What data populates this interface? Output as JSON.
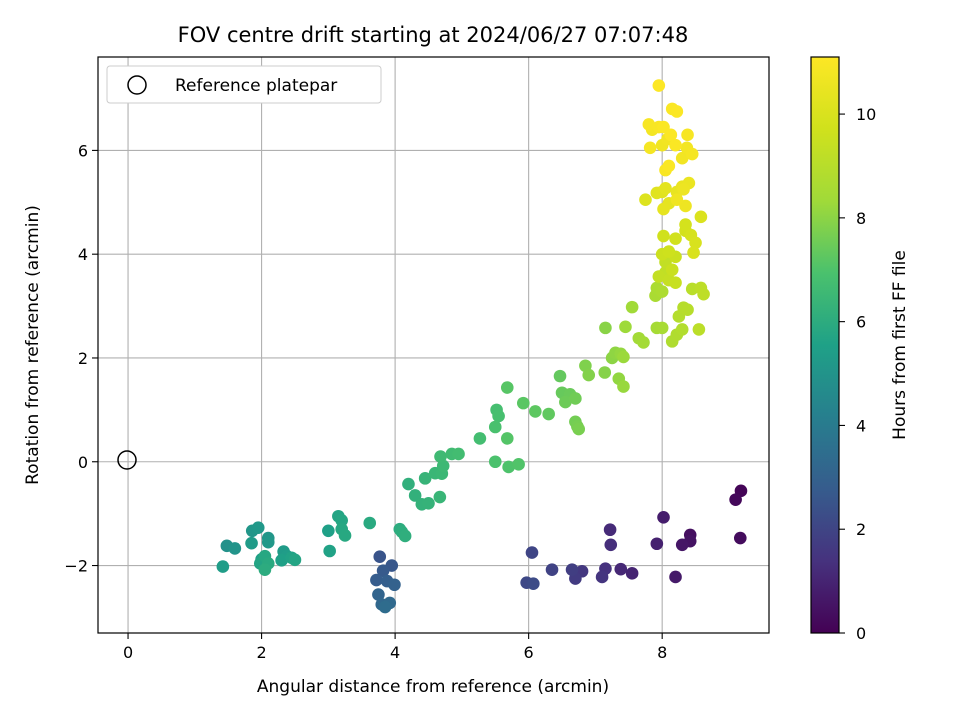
{
  "chart_data": {
    "type": "scatter",
    "title": "FOV centre drift starting at 2024/06/27 07:07:48",
    "xlabel": "Angular distance from reference (arcmin)",
    "ylabel": "Rotation from reference (arcmin)",
    "xlim": [
      -0.45,
      9.6
    ],
    "ylim": [
      -3.3,
      7.8
    ],
    "xticks": [
      0,
      2,
      4,
      6,
      8
    ],
    "yticks": [
      -2,
      0,
      2,
      4,
      6
    ],
    "grid": true,
    "legend": {
      "placement": "top-left",
      "entries": [
        "Reference platepar"
      ]
    },
    "reference_point": {
      "x": 0,
      "y": 0,
      "marker": "open circle"
    },
    "colorbar": {
      "label": "Hours from first FF file",
      "colormap": "viridis",
      "range": [
        0,
        11.1
      ],
      "ticks": [
        0,
        2,
        4,
        6,
        8,
        10
      ]
    },
    "points": [
      [
        9.18,
        -0.56,
        0.1
      ],
      [
        9.1,
        -0.73,
        0.2
      ],
      [
        9.17,
        -1.47,
        0.3
      ],
      [
        8.42,
        -1.41,
        0.4
      ],
      [
        8.42,
        -1.53,
        0.5
      ],
      [
        8.3,
        -1.6,
        0.6
      ],
      [
        8.2,
        -2.22,
        0.7
      ],
      [
        8.02,
        -1.07,
        0.8
      ],
      [
        7.92,
        -1.58,
        0.9
      ],
      [
        7.55,
        -2.15,
        1.0
      ],
      [
        7.38,
        -2.07,
        1.1
      ],
      [
        7.22,
        -1.31,
        1.2
      ],
      [
        7.23,
        -1.6,
        1.3
      ],
      [
        7.15,
        -2.06,
        1.4
      ],
      [
        7.1,
        -2.22,
        1.5
      ],
      [
        6.8,
        -2.11,
        1.6
      ],
      [
        6.7,
        -2.25,
        1.7
      ],
      [
        6.65,
        -2.08,
        1.8
      ],
      [
        6.35,
        -2.08,
        1.9
      ],
      [
        6.05,
        -1.75,
        2.0
      ],
      [
        5.97,
        -2.33,
        2.1
      ],
      [
        6.07,
        -2.35,
        2.2
      ],
      [
        3.77,
        -1.83,
        2.5
      ],
      [
        3.95,
        -2.0,
        2.6
      ],
      [
        3.82,
        -2.1,
        2.7
      ],
      [
        3.72,
        -2.28,
        2.8
      ],
      [
        3.88,
        -2.3,
        2.9
      ],
      [
        3.99,
        -2.37,
        3.0
      ],
      [
        3.75,
        -2.56,
        3.1
      ],
      [
        3.8,
        -2.75,
        3.2
      ],
      [
        3.92,
        -2.72,
        3.3
      ],
      [
        3.85,
        -2.8,
        3.4
      ],
      [
        1.48,
        -1.62,
        4.9
      ],
      [
        1.6,
        -1.67,
        5.0
      ],
      [
        1.86,
        -1.33,
        5.1
      ],
      [
        1.95,
        -1.27,
        5.2
      ],
      [
        1.85,
        -1.57,
        5.3
      ],
      [
        1.42,
        -2.02,
        5.4
      ],
      [
        2.0,
        -1.88,
        5.5
      ],
      [
        2.05,
        -2.0,
        5.6
      ],
      [
        1.98,
        -1.96,
        5.7
      ],
      [
        2.05,
        -1.82,
        5.8
      ],
      [
        2.1,
        -1.96,
        5.9
      ],
      [
        2.05,
        -2.08,
        6.0
      ],
      [
        2.1,
        -1.47,
        5.1
      ],
      [
        2.1,
        -1.55,
        5.2
      ],
      [
        2.33,
        -1.73,
        5.3
      ],
      [
        2.38,
        -1.82,
        5.4
      ],
      [
        2.3,
        -1.9,
        5.5
      ],
      [
        2.45,
        -1.85,
        5.6
      ],
      [
        2.5,
        -1.89,
        5.7
      ],
      [
        3.0,
        -1.33,
        5.5
      ],
      [
        3.02,
        -1.72,
        5.6
      ],
      [
        3.15,
        -1.05,
        5.7
      ],
      [
        3.2,
        -1.13,
        5.75
      ],
      [
        3.2,
        -1.3,
        5.8
      ],
      [
        3.25,
        -1.42,
        5.85
      ],
      [
        3.62,
        -1.18,
        5.9
      ],
      [
        4.07,
        -1.3,
        6.0
      ],
      [
        4.1,
        -1.35,
        6.05
      ],
      [
        4.15,
        -1.43,
        6.1
      ],
      [
        4.2,
        -0.43,
        6.15
      ],
      [
        4.3,
        -0.65,
        6.2
      ],
      [
        4.4,
        -0.82,
        6.25
      ],
      [
        4.5,
        -0.8,
        6.3
      ],
      [
        4.45,
        -0.32,
        6.35
      ],
      [
        4.67,
        -0.68,
        6.4
      ],
      [
        4.6,
        -0.22,
        6.45
      ],
      [
        4.7,
        -0.23,
        6.5
      ],
      [
        4.72,
        -0.08,
        6.55
      ],
      [
        4.68,
        0.1,
        6.6
      ],
      [
        4.85,
        0.15,
        6.65
      ],
      [
        4.95,
        0.15,
        6.7
      ],
      [
        5.27,
        0.45,
        6.75
      ],
      [
        5.52,
        1.0,
        6.8
      ],
      [
        5.55,
        0.88,
        6.85
      ],
      [
        5.5,
        0.67,
        6.9
      ],
      [
        5.5,
        0.0,
        6.95
      ],
      [
        5.7,
        -0.1,
        7.0
      ],
      [
        5.85,
        -0.05,
        7.05
      ],
      [
        5.68,
        0.45,
        7.1
      ],
      [
        5.68,
        1.43,
        7.15
      ],
      [
        5.92,
        1.13,
        7.2
      ],
      [
        6.1,
        0.97,
        7.25
      ],
      [
        6.3,
        0.92,
        7.3
      ],
      [
        6.47,
        1.65,
        7.35
      ],
      [
        6.5,
        1.33,
        7.4
      ],
      [
        6.62,
        1.3,
        7.45
      ],
      [
        6.55,
        1.15,
        7.5
      ],
      [
        6.7,
        1.22,
        7.55
      ],
      [
        6.7,
        0.77,
        7.6
      ],
      [
        6.73,
        0.68,
        7.65
      ],
      [
        6.75,
        0.63,
        7.7
      ],
      [
        6.85,
        1.85,
        7.8
      ],
      [
        6.9,
        1.67,
        7.85
      ],
      [
        7.14,
        1.72,
        7.9
      ],
      [
        7.15,
        2.58,
        7.95
      ],
      [
        7.25,
        2.0,
        8.0
      ],
      [
        7.3,
        2.1,
        8.05
      ],
      [
        7.35,
        1.6,
        8.1
      ],
      [
        7.38,
        2.08,
        8.15
      ],
      [
        7.42,
        1.45,
        8.2
      ],
      [
        7.42,
        2.02,
        8.25
      ],
      [
        7.45,
        2.6,
        8.3
      ],
      [
        7.55,
        2.98,
        8.35
      ],
      [
        7.65,
        2.38,
        8.4
      ],
      [
        7.72,
        2.3,
        8.45
      ],
      [
        7.92,
        2.58,
        8.5
      ],
      [
        8.0,
        2.58,
        8.55
      ],
      [
        7.9,
        3.2,
        8.6
      ],
      [
        7.92,
        3.35,
        8.65
      ],
      [
        8.0,
        3.28,
        8.7
      ],
      [
        8.15,
        2.32,
        8.75
      ],
      [
        8.22,
        2.45,
        8.8
      ],
      [
        8.3,
        2.55,
        8.85
      ],
      [
        8.25,
        2.8,
        8.9
      ],
      [
        8.32,
        2.97,
        8.95
      ],
      [
        8.38,
        2.93,
        9.0
      ],
      [
        8.45,
        3.33,
        9.05
      ],
      [
        8.55,
        2.55,
        9.1
      ],
      [
        8.58,
        3.35,
        9.15
      ],
      [
        8.62,
        3.23,
        9.2
      ],
      [
        8.05,
        3.65,
        9.25
      ],
      [
        8.05,
        3.85,
        9.3
      ],
      [
        7.95,
        3.57,
        9.35
      ],
      [
        8.1,
        3.5,
        9.4
      ],
      [
        8.2,
        3.45,
        9.45
      ],
      [
        8.15,
        3.7,
        9.5
      ],
      [
        8.2,
        3.95,
        9.55
      ],
      [
        8.0,
        4.0,
        9.6
      ],
      [
        8.1,
        4.05,
        9.65
      ],
      [
        8.02,
        4.35,
        9.7
      ],
      [
        8.2,
        4.3,
        9.75
      ],
      [
        8.35,
        4.45,
        9.8
      ],
      [
        8.35,
        4.57,
        9.85
      ],
      [
        8.43,
        4.37,
        9.9
      ],
      [
        8.5,
        4.22,
        9.95
      ],
      [
        8.47,
        4.03,
        10.0
      ],
      [
        8.58,
        4.72,
        10.05
      ],
      [
        7.75,
        5.05,
        10.1
      ],
      [
        7.92,
        5.18,
        10.2
      ],
      [
        8.0,
        5.2,
        10.25
      ],
      [
        8.05,
        5.27,
        10.3
      ],
      [
        8.1,
        4.98,
        10.35
      ],
      [
        8.02,
        4.87,
        10.4
      ],
      [
        8.22,
        5.2,
        10.45
      ],
      [
        8.3,
        5.3,
        10.5
      ],
      [
        8.4,
        5.37,
        10.55
      ],
      [
        8.32,
        5.25,
        10.6
      ],
      [
        8.35,
        4.93,
        10.65
      ],
      [
        8.22,
        5.05,
        10.7
      ],
      [
        8.3,
        5.85,
        10.75
      ],
      [
        8.37,
        6.05,
        10.8
      ],
      [
        8.45,
        5.93,
        10.85
      ],
      [
        8.38,
        6.3,
        10.9
      ],
      [
        8.05,
        5.62,
        10.95
      ],
      [
        8.1,
        5.7,
        11.0
      ],
      [
        8.0,
        6.1,
        10.7
      ],
      [
        8.08,
        6.22,
        10.75
      ],
      [
        7.85,
        6.4,
        10.8
      ],
      [
        7.82,
        6.05,
        10.85
      ],
      [
        7.8,
        6.5,
        10.9
      ],
      [
        7.95,
        6.45,
        10.95
      ],
      [
        8.02,
        6.45,
        11.0
      ],
      [
        8.13,
        6.3,
        11.05
      ],
      [
        8.2,
        6.1,
        11.0
      ],
      [
        8.15,
        6.8,
        11.02
      ],
      [
        8.22,
        6.75,
        11.05
      ],
      [
        7.95,
        7.25,
        11.08
      ]
    ]
  }
}
